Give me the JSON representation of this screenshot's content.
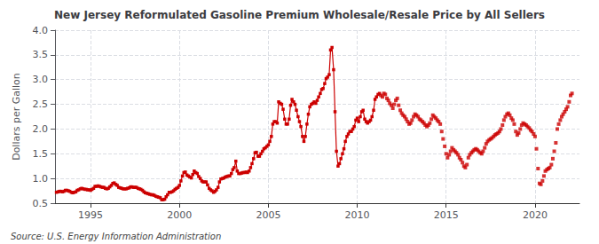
{
  "chart_data": {
    "type": "line",
    "title": "New Jersey Reformulated Gasoline Premium Wholesale/Resale Price by All Sellers",
    "ylabel": "Dollars per Gallon",
    "annotations": [
      "Source: U.S. Energy Information Administration"
    ],
    "xlim": [
      1993.0,
      2022.5
    ],
    "xticks": [
      1995,
      2000,
      2005,
      2010,
      2015,
      2020
    ],
    "ylim": [
      0.5,
      4.0
    ],
    "yticks": [
      0.5,
      {
        "value": 1.0,
        "label": "1.0"
      },
      1.5,
      {
        "value": 2.0,
        "label": "2.0"
      },
      2.5,
      {
        "value": 3.0,
        "label": "3.0"
      },
      3.5,
      {
        "value": 4.0,
        "label": "4.0"
      }
    ],
    "grid": true,
    "series": [
      {
        "type": "line",
        "color": "#cc0000",
        "marker": "square",
        "x": [
          1993.08,
          1993.17,
          1993.25,
          1993.33,
          1993.42,
          1993.5,
          1993.58,
          1993.67,
          1993.75,
          1993.83,
          1993.92,
          1994.0,
          1994.08,
          1994.17,
          1994.25,
          1994.33,
          1994.42,
          1994.5,
          1994.58,
          1994.67,
          1994.75,
          1994.83,
          1994.92,
          1995.0,
          1995.08,
          1995.17,
          1995.25,
          1995.33,
          1995.42,
          1995.5,
          1995.58,
          1995.67,
          1995.75,
          1995.83,
          1995.92,
          1996.0,
          1996.08,
          1996.17,
          1996.25,
          1996.33,
          1996.42,
          1996.5,
          1996.58,
          1996.67,
          1996.75,
          1996.83,
          1996.92,
          1997.0,
          1997.08,
          1997.17,
          1997.25,
          1997.33,
          1997.42,
          1997.5,
          1997.58,
          1997.67,
          1997.75,
          1997.83,
          1997.92,
          1998.0,
          1998.08,
          1998.17,
          1998.25,
          1998.33,
          1998.42,
          1998.5,
          1998.58,
          1998.67,
          1998.75,
          1998.83,
          1998.92,
          1999.0,
          1999.08,
          1999.17,
          1999.25,
          1999.33,
          1999.42,
          1999.5,
          1999.58,
          1999.67,
          1999.75,
          1999.83,
          1999.92,
          2000.0,
          2000.08,
          2000.17,
          2000.25,
          2000.33,
          2000.42,
          2000.5,
          2000.58,
          2000.67,
          2000.75,
          2000.83,
          2000.92,
          2001.0,
          2001.08,
          2001.17,
          2001.25,
          2001.33,
          2001.42,
          2001.5,
          2001.58,
          2001.67,
          2001.75,
          2001.83,
          2001.92,
          2002.0,
          2002.08,
          2002.17,
          2002.25,
          2002.33,
          2002.42,
          2002.5,
          2002.58,
          2002.67,
          2002.75,
          2002.83,
          2002.92,
          2003.0,
          2003.08,
          2003.17,
          2003.25,
          2003.33,
          2003.42,
          2003.5,
          2003.58,
          2003.67,
          2003.75,
          2003.83,
          2003.92,
          2004.0,
          2004.08,
          2004.17,
          2004.25,
          2004.33,
          2004.42,
          2004.5,
          2004.58,
          2004.67,
          2004.75,
          2004.83,
          2004.92,
          2005.0,
          2005.08,
          2005.17,
          2005.25,
          2005.33,
          2005.42,
          2005.5,
          2005.58,
          2005.67,
          2005.75,
          2005.83,
          2005.92,
          2006.0,
          2006.08,
          2006.17,
          2006.25,
          2006.33,
          2006.42,
          2006.5,
          2006.58,
          2006.67,
          2006.75,
          2006.83,
          2006.92,
          2007.0,
          2007.08,
          2007.17,
          2007.25,
          2007.33,
          2007.42,
          2007.5,
          2007.58,
          2007.67,
          2007.75,
          2007.83,
          2007.92,
          2008.0,
          2008.08,
          2008.17,
          2008.25,
          2008.33,
          2008.42,
          2008.5,
          2008.58,
          2008.67,
          2008.75,
          2008.83,
          2008.92,
          2009.0,
          2009.08,
          2009.17,
          2009.25,
          2009.33,
          2009.42,
          2009.5,
          2009.58,
          2009.67,
          2009.75,
          2009.83,
          2009.92,
          2010.0,
          2010.08,
          2010.17,
          2010.25,
          2010.33,
          2010.42,
          2010.5,
          2010.58,
          2010.67,
          2010.75,
          2010.83,
          2010.92,
          2011.0,
          2011.08,
          2011.17,
          2011.25
        ],
        "values": [
          0.72,
          0.73,
          0.74,
          0.74,
          0.73,
          0.74,
          0.76,
          0.76,
          0.75,
          0.74,
          0.72,
          0.71,
          0.72,
          0.73,
          0.76,
          0.77,
          0.79,
          0.8,
          0.79,
          0.78,
          0.78,
          0.77,
          0.77,
          0.76,
          0.78,
          0.8,
          0.84,
          0.84,
          0.85,
          0.84,
          0.83,
          0.82,
          0.82,
          0.8,
          0.79,
          0.8,
          0.83,
          0.86,
          0.9,
          0.91,
          0.88,
          0.86,
          0.82,
          0.81,
          0.8,
          0.79,
          0.79,
          0.79,
          0.8,
          0.81,
          0.83,
          0.83,
          0.82,
          0.82,
          0.82,
          0.8,
          0.79,
          0.78,
          0.76,
          0.73,
          0.71,
          0.7,
          0.69,
          0.68,
          0.67,
          0.67,
          0.66,
          0.64,
          0.63,
          0.62,
          0.61,
          0.57,
          0.57,
          0.58,
          0.63,
          0.67,
          0.72,
          0.72,
          0.73,
          0.75,
          0.78,
          0.8,
          0.82,
          0.86,
          0.95,
          1.05,
          1.12,
          1.13,
          1.07,
          1.05,
          1.03,
          1.01,
          1.08,
          1.15,
          1.12,
          1.1,
          1.04,
          1.0,
          0.95,
          0.93,
          0.93,
          0.93,
          0.87,
          0.8,
          0.77,
          0.75,
          0.72,
          0.74,
          0.77,
          0.82,
          0.93,
          0.99,
          1.0,
          1.01,
          1.03,
          1.04,
          1.05,
          1.05,
          1.1,
          1.18,
          1.22,
          1.35,
          1.15,
          1.1,
          1.1,
          1.11,
          1.12,
          1.12,
          1.13,
          1.12,
          1.15,
          1.22,
          1.3,
          1.4,
          1.52,
          1.53,
          1.45,
          1.45,
          1.5,
          1.55,
          1.6,
          1.62,
          1.65,
          1.68,
          1.75,
          1.85,
          2.1,
          2.15,
          2.15,
          2.12,
          2.55,
          2.52,
          2.5,
          2.4,
          2.2,
          2.1,
          2.1,
          2.2,
          2.48,
          2.6,
          2.55,
          2.5,
          2.38,
          2.25,
          2.15,
          2.05,
          1.85,
          1.75,
          1.85,
          2.1,
          2.3,
          2.45,
          2.5,
          2.52,
          2.55,
          2.52,
          2.58,
          2.65,
          2.72,
          2.8,
          2.82,
          2.92,
          3.02,
          3.05,
          3.1,
          3.6,
          3.65,
          3.2,
          2.35,
          1.55,
          1.25,
          1.3,
          1.4,
          1.5,
          1.6,
          1.75,
          1.85,
          1.9,
          1.95,
          1.95,
          2.0,
          2.05,
          2.18,
          2.22,
          2.15,
          2.25,
          2.35,
          2.38,
          2.2,
          2.15,
          2.12,
          2.15,
          2.18,
          2.25,
          2.38,
          2.6,
          2.65,
          2.7,
          2.72
        ]
      },
      {
        "type": "scatter",
        "color": "#cc0000",
        "marker": "square",
        "x": [
          2011.33,
          2011.42,
          2011.5,
          2011.58,
          2011.67,
          2011.75,
          2011.83,
          2011.92,
          2012.0,
          2012.08,
          2012.17,
          2012.25,
          2012.33,
          2012.42,
          2012.5,
          2012.58,
          2012.67,
          2012.75,
          2012.83,
          2012.92,
          2013.0,
          2013.08,
          2013.17,
          2013.25,
          2013.33,
          2013.42,
          2013.5,
          2013.58,
          2013.67,
          2013.75,
          2013.83,
          2013.92,
          2014.0,
          2014.08,
          2014.17,
          2014.25,
          2014.33,
          2014.42,
          2014.5,
          2014.58,
          2014.67,
          2014.75,
          2014.83,
          2014.92,
          2015.0,
          2015.08,
          2015.17,
          2015.25,
          2015.33,
          2015.42,
          2015.5,
          2015.58,
          2015.67,
          2015.75,
          2015.83,
          2015.92,
          2016.0,
          2016.08,
          2016.17,
          2016.25,
          2016.33,
          2016.42,
          2016.5,
          2016.58,
          2016.67,
          2016.75,
          2016.83,
          2016.92,
          2017.0,
          2017.08,
          2017.17,
          2017.25,
          2017.33,
          2017.42,
          2017.5,
          2017.58,
          2017.67,
          2017.75,
          2017.83,
          2017.92,
          2018.0,
          2018.08,
          2018.17,
          2018.25,
          2018.33,
          2018.42,
          2018.5,
          2018.58,
          2018.67,
          2018.75,
          2018.83,
          2018.92,
          2019.0,
          2019.08,
          2019.17,
          2019.25,
          2019.33,
          2019.42,
          2019.5,
          2019.58,
          2019.67,
          2019.75,
          2019.83,
          2019.92,
          2020.0,
          2020.08,
          2020.17,
          2020.25,
          2020.33,
          2020.42,
          2020.5,
          2020.58,
          2020.67,
          2020.75,
          2020.83,
          2020.92,
          2021.0,
          2021.08,
          2021.17,
          2021.25,
          2021.33,
          2021.42,
          2021.5,
          2021.58,
          2021.67,
          2021.75,
          2021.83,
          2021.92,
          2022.0,
          2022.08
        ],
        "values": [
          2.68,
          2.65,
          2.72,
          2.7,
          2.62,
          2.58,
          2.52,
          2.48,
          2.42,
          2.5,
          2.58,
          2.62,
          2.48,
          2.38,
          2.32,
          2.28,
          2.25,
          2.2,
          2.15,
          2.1,
          2.12,
          2.18,
          2.25,
          2.3,
          2.28,
          2.25,
          2.2,
          2.18,
          2.15,
          2.12,
          2.08,
          2.05,
          2.08,
          2.12,
          2.2,
          2.28,
          2.25,
          2.22,
          2.18,
          2.15,
          2.1,
          1.95,
          1.8,
          1.65,
          1.5,
          1.42,
          1.48,
          1.55,
          1.62,
          1.58,
          1.55,
          1.52,
          1.48,
          1.42,
          1.38,
          1.32,
          1.25,
          1.22,
          1.28,
          1.42,
          1.48,
          1.52,
          1.55,
          1.58,
          1.6,
          1.58,
          1.55,
          1.52,
          1.5,
          1.55,
          1.62,
          1.7,
          1.75,
          1.78,
          1.8,
          1.82,
          1.85,
          1.88,
          1.9,
          1.92,
          1.95,
          2.0,
          2.08,
          2.18,
          2.25,
          2.3,
          2.32,
          2.28,
          2.22,
          2.18,
          2.1,
          1.95,
          1.88,
          1.92,
          2.0,
          2.08,
          2.12,
          2.1,
          2.08,
          2.05,
          2.02,
          1.98,
          1.95,
          1.9,
          1.85,
          1.6,
          1.2,
          0.9,
          0.88,
          0.95,
          1.05,
          1.15,
          1.18,
          1.2,
          1.22,
          1.28,
          1.4,
          1.55,
          1.72,
          2.0,
          2.1,
          2.18,
          2.25,
          2.3,
          2.35,
          2.4,
          2.45,
          2.55,
          2.68,
          2.72
        ]
      }
    ]
  }
}
